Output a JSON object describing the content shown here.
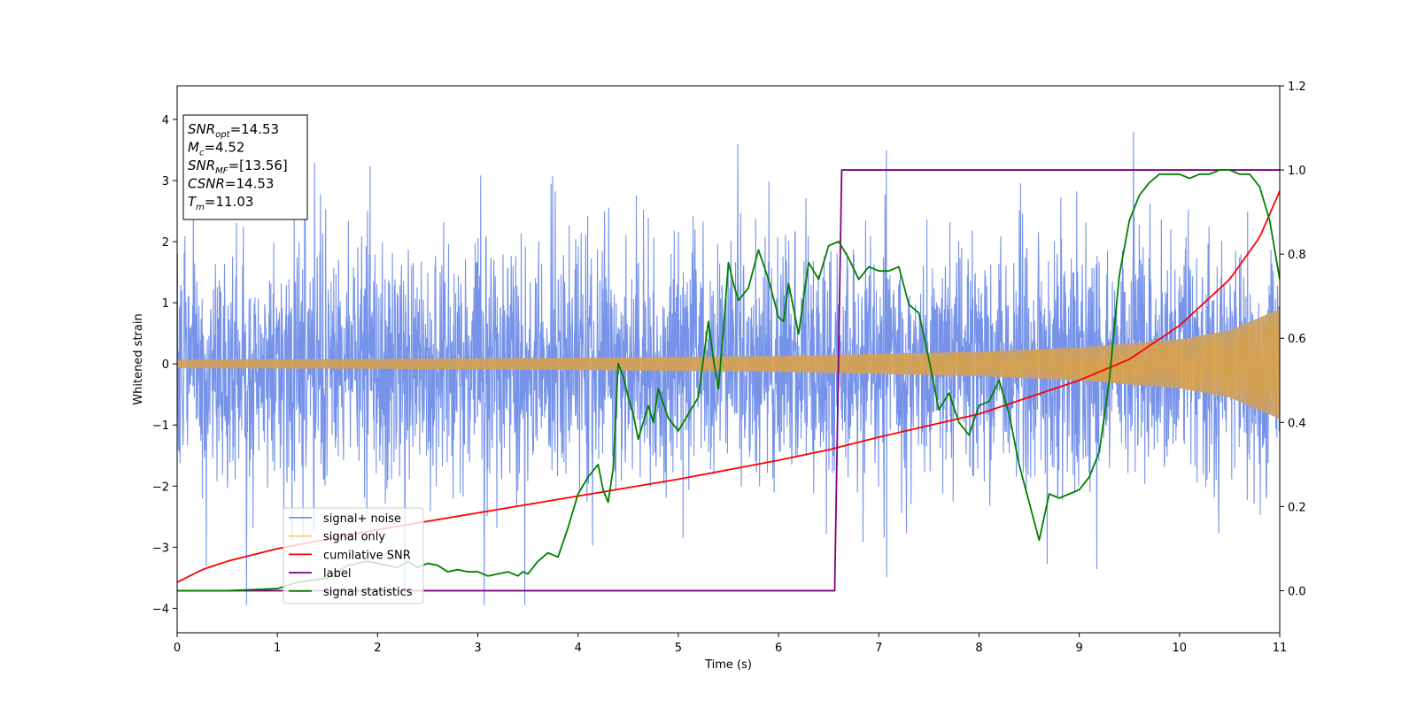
{
  "chart_data": {
    "type": "line",
    "title": "",
    "xlabel": "Time (s)",
    "ylabel": "Whitened strain",
    "xlim": [
      0,
      11
    ],
    "ylim": [
      -4.4,
      4.55
    ],
    "y2lim": [
      -0.1,
      1.2
    ],
    "xticks": [
      "0",
      "1",
      "2",
      "3",
      "4",
      "5",
      "6",
      "7",
      "8",
      "9",
      "10",
      "11"
    ],
    "yticks": [
      "−4",
      "−3",
      "−2",
      "−1",
      "0",
      "1",
      "2",
      "3",
      "4"
    ],
    "y2ticks": [
      "0.0",
      "0.2",
      "0.4",
      "0.6",
      "0.8",
      "1.0",
      "1.2"
    ],
    "grid": false,
    "legend_position": "lower-left",
    "annotations": [
      {
        "base": "SNR",
        "sub": "opt",
        "value": "=14.53"
      },
      {
        "base": "M",
        "sub": "c",
        "value": "=4.52"
      },
      {
        "base": "SNR",
        "sub": "MF",
        "value": "=[13.56]"
      },
      {
        "base": "CSNR",
        "sub": "",
        "value": "=14.53"
      },
      {
        "base": "T",
        "sub": "m",
        "value": "=11.03"
      }
    ],
    "series": [
      {
        "name": "signal+ noise",
        "axis": "left",
        "color": "#4169e1",
        "description_of_values": "whitened strain noise, roughly ±1.5 typical with peaks near ±3.5",
        "envelope": {
          "typical": 1.5,
          "max_peak": 3.8,
          "min_peak": -3.95
        }
      },
      {
        "name": "signal only",
        "axis": "left",
        "color": "#ffa500",
        "envelope_x": [
          0,
          2,
          4,
          6,
          8,
          9,
          10,
          10.5,
          11
        ],
        "envelope_y": [
          0.07,
          0.08,
          0.1,
          0.13,
          0.2,
          0.27,
          0.4,
          0.55,
          0.9
        ]
      },
      {
        "name": "cumilative SNR",
        "axis": "right",
        "color": "#ff0000",
        "x": [
          0,
          0.25,
          0.5,
          1,
          2,
          3,
          4,
          5,
          6,
          6.5,
          7,
          8,
          9,
          9.5,
          10,
          10.5,
          10.8,
          11
        ],
        "y": [
          0.02,
          0.05,
          0.07,
          0.1,
          0.145,
          0.185,
          0.225,
          0.265,
          0.31,
          0.335,
          0.365,
          0.42,
          0.5,
          0.55,
          0.63,
          0.74,
          0.84,
          0.95
        ]
      },
      {
        "name": "label",
        "axis": "right",
        "color": "#800080",
        "x": [
          0,
          6.56,
          6.63,
          11
        ],
        "y": [
          0,
          0,
          1,
          1
        ]
      },
      {
        "name": "signal statistics",
        "axis": "right",
        "color": "#008000",
        "x": [
          0,
          0.5,
          1.0,
          1.2,
          1.5,
          1.7,
          1.9,
          2.0,
          2.2,
          2.3,
          2.4,
          2.5,
          2.6,
          2.7,
          2.8,
          2.9,
          3.0,
          3.1,
          3.2,
          3.3,
          3.4,
          3.45,
          3.5,
          3.6,
          3.7,
          3.8,
          3.9,
          4.0,
          4.1,
          4.2,
          4.25,
          4.3,
          4.35,
          4.4,
          4.45,
          4.5,
          4.55,
          4.6,
          4.7,
          4.75,
          4.8,
          4.9,
          5.0,
          5.1,
          5.2,
          5.3,
          5.35,
          5.4,
          5.45,
          5.5,
          5.55,
          5.6,
          5.7,
          5.8,
          5.9,
          6.0,
          6.05,
          6.1,
          6.2,
          6.3,
          6.4,
          6.5,
          6.6,
          6.7,
          6.8,
          6.9,
          7.0,
          7.1,
          7.2,
          7.3,
          7.4,
          7.5,
          7.6,
          7.7,
          7.8,
          7.9,
          8.0,
          8.1,
          8.2,
          8.3,
          8.4,
          8.5,
          8.6,
          8.7,
          8.8,
          8.9,
          9.0,
          9.1,
          9.2,
          9.3,
          9.4,
          9.5,
          9.6,
          9.7,
          9.8,
          9.9,
          10.0,
          10.1,
          10.2,
          10.3,
          10.4,
          10.5,
          10.6,
          10.7,
          10.8,
          10.9,
          11.0
        ],
        "y": [
          0.0,
          0.0,
          0.005,
          0.02,
          0.03,
          0.06,
          0.07,
          0.065,
          0.055,
          0.07,
          0.055,
          0.065,
          0.06,
          0.045,
          0.05,
          0.045,
          0.045,
          0.035,
          0.04,
          0.045,
          0.035,
          0.045,
          0.04,
          0.07,
          0.09,
          0.08,
          0.15,
          0.23,
          0.27,
          0.3,
          0.24,
          0.21,
          0.29,
          0.54,
          0.51,
          0.46,
          0.42,
          0.36,
          0.44,
          0.4,
          0.48,
          0.41,
          0.38,
          0.42,
          0.46,
          0.64,
          0.55,
          0.48,
          0.62,
          0.78,
          0.73,
          0.69,
          0.72,
          0.81,
          0.74,
          0.65,
          0.64,
          0.73,
          0.61,
          0.78,
          0.74,
          0.82,
          0.83,
          0.79,
          0.74,
          0.77,
          0.76,
          0.76,
          0.77,
          0.68,
          0.66,
          0.55,
          0.43,
          0.47,
          0.4,
          0.37,
          0.44,
          0.45,
          0.5,
          0.42,
          0.3,
          0.21,
          0.12,
          0.23,
          0.22,
          0.23,
          0.24,
          0.27,
          0.33,
          0.5,
          0.75,
          0.88,
          0.94,
          0.97,
          0.99,
          0.99,
          0.99,
          0.98,
          0.99,
          0.99,
          1.0,
          1.0,
          0.99,
          0.99,
          0.96,
          0.88,
          0.74
        ]
      }
    ]
  }
}
